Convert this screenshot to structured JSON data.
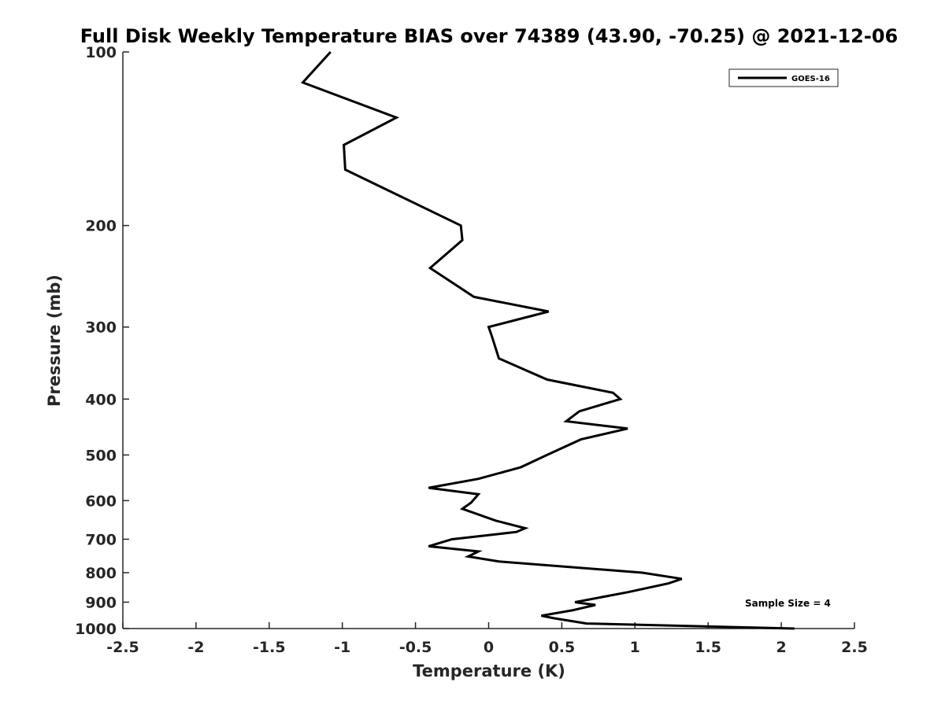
{
  "chart_data": {
    "type": "line",
    "title": "Full Disk Weekly Temperature BIAS over 74389 (43.90, -70.25) @ 2021-12-06",
    "xlabel": "Temperature (K)",
    "ylabel": "Pressure (mb)",
    "xlim": [
      -2.5,
      2.5
    ],
    "ylim": [
      100,
      1000
    ],
    "y_scale": "log",
    "y_reversed": true,
    "grid": false,
    "x_ticks": [
      -2.5,
      -2,
      -1.5,
      -1,
      -0.5,
      0,
      0.5,
      1,
      1.5,
      2,
      2.5
    ],
    "x_tick_labels": [
      "-2.5",
      "-2",
      "-1.5",
      "-1",
      "-0.5",
      "0",
      "0.5",
      "1",
      "1.5",
      "2",
      "2.5"
    ],
    "y_ticks": [
      100,
      200,
      300,
      400,
      500,
      600,
      700,
      800,
      900,
      1000
    ],
    "y_tick_labels": [
      "100",
      "200",
      "300",
      "400",
      "500",
      "600",
      "700",
      "800",
      "900",
      "1000"
    ],
    "legend_position": "top-right",
    "series": [
      {
        "name": "GOES-16",
        "color": "#000000",
        "x": [
          -1.08,
          -1.27,
          -0.63,
          -0.99,
          -0.98,
          -0.19,
          -0.18,
          -0.4,
          -0.1,
          0.41,
          0.0,
          0.02,
          0.07,
          0.4,
          0.85,
          0.9,
          0.62,
          0.53,
          0.95,
          0.63,
          0.4,
          0.22,
          -0.07,
          -0.41,
          -0.07,
          -0.12,
          -0.18,
          0.05,
          0.25,
          0.19,
          -0.25,
          -0.41,
          -0.07,
          -0.14,
          0.07,
          1.05,
          1.32,
          1.23,
          0.95,
          0.59,
          0.73,
          0.57,
          0.36,
          0.45,
          0.67,
          2.09
        ],
        "y": [
          100,
          113,
          130,
          145,
          160,
          200,
          212,
          237,
          266,
          282,
          300,
          310,
          340,
          370,
          390,
          400,
          420,
          437,
          450,
          470,
          500,
          525,
          550,
          570,
          585,
          605,
          620,
          650,
          670,
          680,
          700,
          720,
          735,
          750,
          765,
          800,
          820,
          835,
          865,
          900,
          910,
          930,
          950,
          960,
          980,
          1000
        ]
      }
    ],
    "legend": {
      "entries": [
        "GOES-16"
      ]
    },
    "annotations": [
      {
        "text": "Sample Size = 4",
        "position": "bottom-right"
      }
    ]
  }
}
